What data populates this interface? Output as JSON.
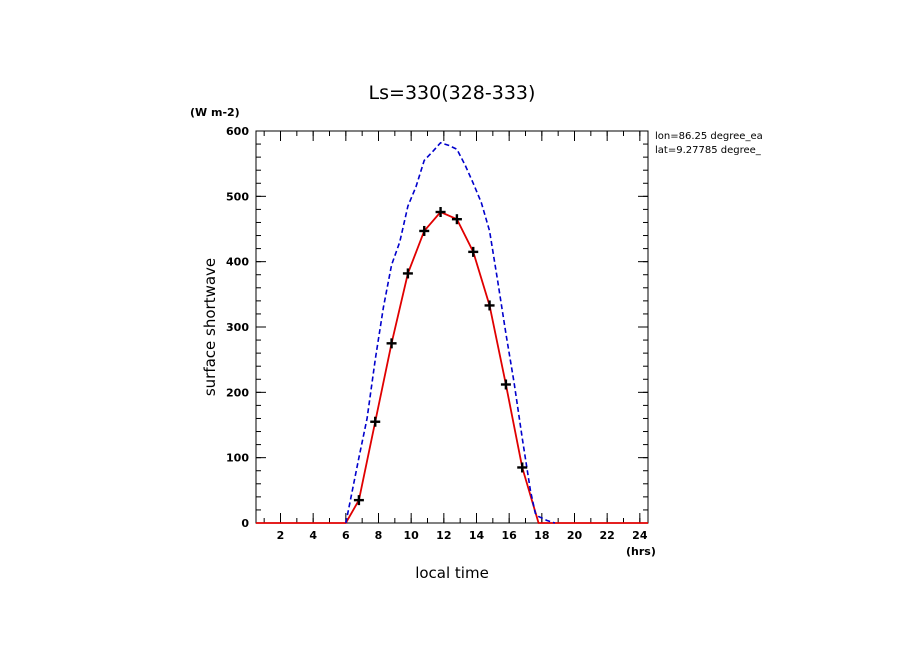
{
  "chart_data": {
    "type": "line",
    "title": "Ls=330(328-333)",
    "xlabel": "local time",
    "ylabel": "surface shortwave",
    "x_unit": "(hrs)",
    "y_unit": "(W m-2)",
    "xlim": [
      0.5,
      24.5
    ],
    "ylim": [
      0,
      600
    ],
    "x_ticks": [
      2,
      4,
      6,
      8,
      10,
      12,
      14,
      16,
      18,
      20,
      22,
      24
    ],
    "x_tick_labels": [
      "2",
      "4",
      "6",
      "8",
      "10",
      "12",
      "14",
      "16",
      "18",
      "20",
      "22",
      "24"
    ],
    "y_ticks": [
      0,
      100,
      200,
      300,
      400,
      500,
      600
    ],
    "y_tick_labels": [
      "0",
      "100",
      "200",
      "300",
      "400",
      "500",
      "600"
    ],
    "annotations": [
      "lon=86.25 degree_ea",
      "lat=9.27785 degree_"
    ],
    "grid": false,
    "series": [
      {
        "style": "solid",
        "color": "#e00000",
        "x": [
          0.5,
          1.5,
          2.5,
          3.5,
          4.5,
          5.5,
          6.0,
          6.8,
          7.8,
          8.8,
          9.8,
          10.8,
          11.8,
          12.8,
          13.8,
          14.8,
          15.8,
          16.8,
          17.8,
          18.8,
          19.8,
          20.8,
          21.8,
          22.8,
          23.8,
          24.5
        ],
        "values": [
          0,
          0,
          0,
          0,
          0,
          0,
          0,
          35,
          155,
          275,
          382,
          447,
          476,
          465,
          415,
          333,
          212,
          85,
          0,
          0,
          0,
          0,
          0,
          0,
          0,
          0
        ]
      },
      {
        "style": "dashed",
        "color": "#0000cc",
        "x": [
          6.0,
          6.8,
          7.3,
          7.8,
          8.3,
          8.8,
          9.3,
          9.8,
          10.3,
          10.8,
          11.3,
          11.8,
          12.3,
          12.8,
          13.3,
          13.8,
          14.3,
          14.8,
          15.3,
          15.8,
          16.3,
          16.8,
          17.3,
          17.6,
          17.8,
          18.3,
          18.8
        ],
        "values": [
          0,
          100,
          160,
          250,
          330,
          395,
          430,
          485,
          515,
          555,
          568,
          582,
          578,
          572,
          548,
          520,
          490,
          447,
          370,
          290,
          215,
          130,
          50,
          15,
          10,
          4,
          0
        ]
      },
      {
        "style": "markers",
        "color": "#000000",
        "x": [
          6.8,
          7.8,
          8.8,
          9.8,
          10.8,
          11.8,
          12.8,
          13.8,
          14.8,
          15.8,
          16.8
        ],
        "values": [
          35,
          155,
          275,
          382,
          447,
          476,
          465,
          415,
          333,
          212,
          85
        ]
      }
    ]
  }
}
